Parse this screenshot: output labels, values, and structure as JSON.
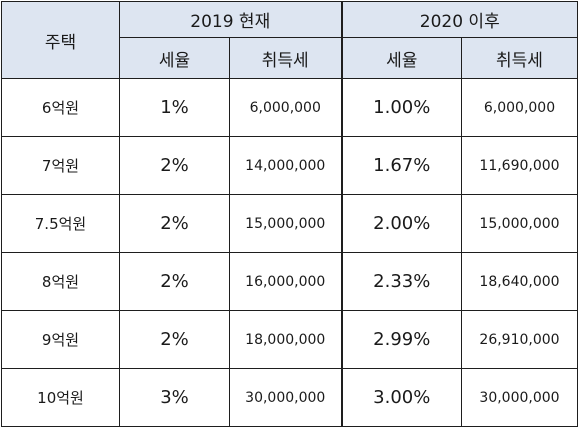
{
  "table": {
    "corner_label": "주택",
    "group_2019": "2019 현재",
    "group_2020": "2020 이후",
    "col_rate": "세율",
    "col_tax": "취득세",
    "rows": [
      {
        "house": "6억원",
        "rate2019": "1%",
        "tax2019": "6,000,000",
        "rate2020": "1.00%",
        "tax2020": "6,000,000"
      },
      {
        "house": "7억원",
        "rate2019": "2%",
        "tax2019": "14,000,000",
        "rate2020": "1.67%",
        "tax2020": "11,690,000"
      },
      {
        "house": "7.5억원",
        "rate2019": "2%",
        "tax2019": "15,000,000",
        "rate2020": "2.00%",
        "tax2020": "15,000,000"
      },
      {
        "house": "8억원",
        "rate2019": "2%",
        "tax2019": "16,000,000",
        "rate2020": "2.33%",
        "tax2020": "18,640,000"
      },
      {
        "house": "9억원",
        "rate2019": "2%",
        "tax2019": "18,000,000",
        "rate2020": "2.99%",
        "tax2020": "26,910,000"
      },
      {
        "house": "10억원",
        "rate2019": "3%",
        "tax2019": "30,000,000",
        "rate2020": "3.00%",
        "tax2020": "30,000,000"
      }
    ]
  },
  "colors": {
    "header_bg": "#dde5f1",
    "border": "#1e1e1e"
  }
}
